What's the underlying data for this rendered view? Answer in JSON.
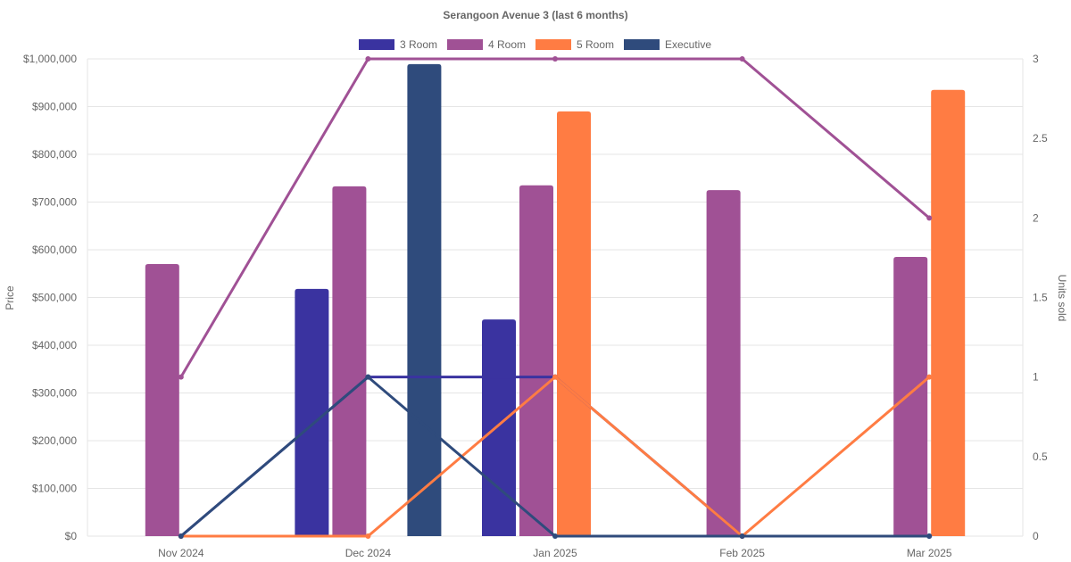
{
  "chart_data": {
    "type": "bar",
    "title": "Serangoon Avenue 3 (last 6 months)",
    "categories": [
      "Nov 2024",
      "Dec 2024",
      "Jan 2025",
      "Feb 2025",
      "Mar 2025"
    ],
    "ylabel": "Price",
    "y2label": "Units sold",
    "ylim": [
      0,
      1000000
    ],
    "y2lim": [
      0,
      3
    ],
    "yticks": [
      "$0",
      "$100,000",
      "$200,000",
      "$300,000",
      "$400,000",
      "$500,000",
      "$600,000",
      "$700,000",
      "$800,000",
      "$900,000",
      "$1,000,000"
    ],
    "y2ticks": [
      "0",
      "0.5",
      "1",
      "1.5",
      "2",
      "2.5",
      "3"
    ],
    "legend_position": "top",
    "grid": true,
    "series": [
      {
        "name": "3 Room",
        "color": "#3a33a0",
        "price": [
          null,
          518000,
          454000,
          null,
          null
        ],
        "units": [
          0,
          1,
          1,
          0,
          0
        ]
      },
      {
        "name": "4 Room",
        "color": "#a05195",
        "price": [
          570000,
          733000,
          735000,
          725000,
          585000
        ],
        "units": [
          1,
          3,
          3,
          3,
          2
        ]
      },
      {
        "name": "5 Room",
        "color": "#ff7c43",
        "price": [
          null,
          null,
          890000,
          null,
          935000
        ],
        "units": [
          0,
          0,
          1,
          0,
          1
        ]
      },
      {
        "name": "Executive",
        "color": "#2f4b7c",
        "price": [
          null,
          989000,
          null,
          null,
          null
        ],
        "units": [
          0,
          1,
          0,
          0,
          0
        ]
      }
    ]
  }
}
